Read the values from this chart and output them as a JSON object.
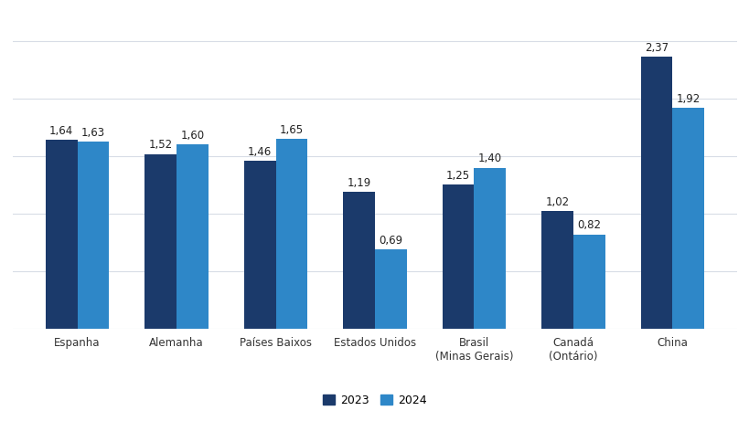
{
  "categories": [
    "Espanha",
    "Alemanha",
    "Países Baixos",
    "Estados Unidos",
    "Brasil\n(Minas Gerais)",
    "Canadá\n(Ontário)",
    "China"
  ],
  "values_2023": [
    1.64,
    1.52,
    1.46,
    1.19,
    1.25,
    1.02,
    2.37
  ],
  "values_2024": [
    1.63,
    1.6,
    1.65,
    0.69,
    1.4,
    0.82,
    1.92
  ],
  "labels_2023": [
    "1,64",
    "1,52",
    "1,46",
    "1,19",
    "1,25",
    "1,02",
    "2,37"
  ],
  "labels_2024": [
    "1,63",
    "1,60",
    "1,65",
    "0,69",
    "1,40",
    "0,82",
    "1,92"
  ],
  "color_2023": "#1b3a6b",
  "color_2024": "#2e87c8",
  "ylim": [
    0,
    2.75
  ],
  "yticks": [
    0.0,
    0.5,
    1.0,
    1.5,
    2.0,
    2.5
  ],
  "legend_2023": "2023",
  "legend_2024": "2024",
  "bar_width": 0.32,
  "background_color": "#ffffff",
  "grid_color": "#d8dde6",
  "label_fontsize": 8.5,
  "tick_fontsize": 8.5,
  "legend_fontsize": 9
}
